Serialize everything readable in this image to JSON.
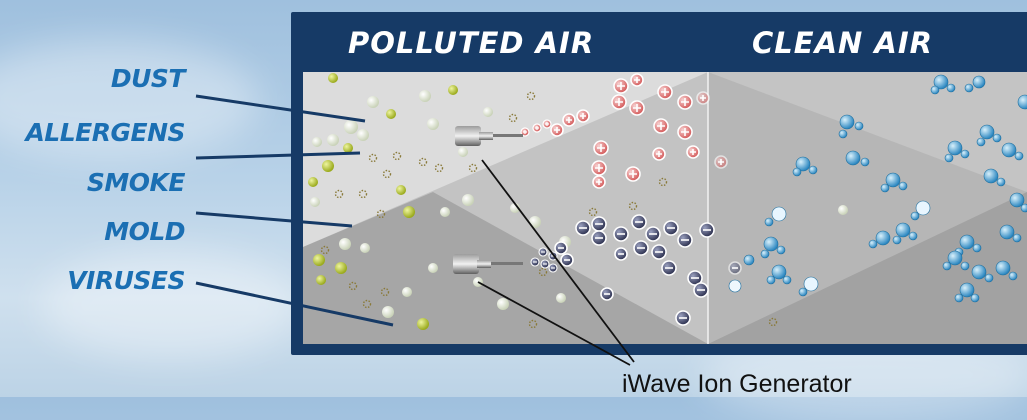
{
  "headers": {
    "left": "POLLUTED AIR",
    "right": "CLEAN AIR"
  },
  "pollutants": [
    "DUST",
    "ALLERGENS",
    "SMOKE",
    "MOLD",
    "VIRUSES"
  ],
  "caption": "iWave Ion Generator",
  "colors": {
    "panel": "#163a66",
    "pollutant_text": "#1b6fb3",
    "positive_ion": "#e08080",
    "negative_ion": "#4a4f6a",
    "clean_molecule": "#4fa7d6"
  },
  "icons": {
    "ion_generator": "ion-generator-nozzle",
    "positive_ion": "plus-ion-icon",
    "negative_ion": "minus-ion-icon",
    "clean_molecule": "molecule-icon"
  }
}
